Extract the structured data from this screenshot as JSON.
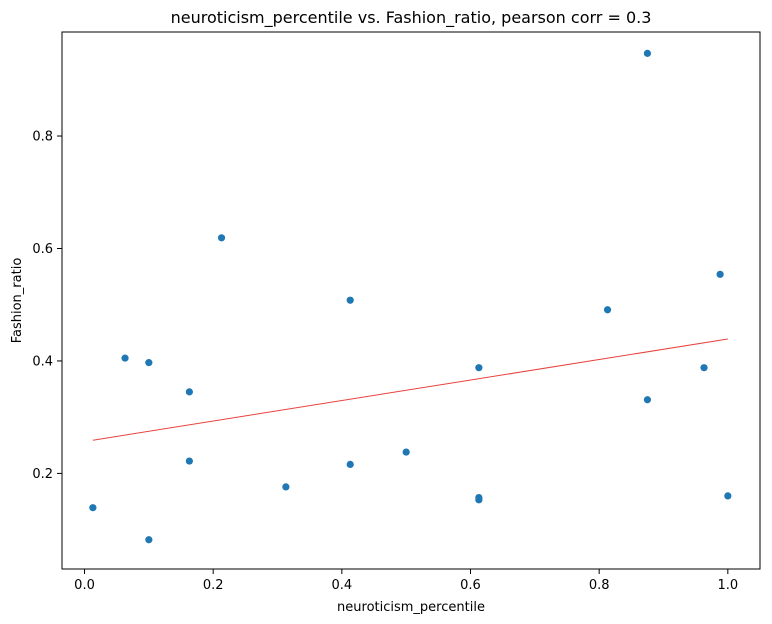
{
  "chart_data": {
    "type": "scatter",
    "title": "neuroticism_percentile vs. Fashion_ratio, pearson corr = 0.3",
    "xlabel": "neuroticism_percentile",
    "ylabel": "Fashion_ratio",
    "xlim": [
      -0.035,
      1.05
    ],
    "ylim": [
      0.03,
      0.985
    ],
    "xticks": [
      0.0,
      0.2,
      0.4,
      0.6,
      0.8,
      1.0
    ],
    "xtick_labels": [
      "0.0",
      "0.2",
      "0.4",
      "0.6",
      "0.8",
      "1.0"
    ],
    "yticks": [
      0.2,
      0.4,
      0.6,
      0.8
    ],
    "ytick_labels": [
      "0.2",
      "0.4",
      "0.6",
      "0.8"
    ],
    "grid": false,
    "point_color": "#1f77b4",
    "trend_color": "#e8423d",
    "points": [
      {
        "x": 0.013,
        "y": 0.139
      },
      {
        "x": 0.063,
        "y": 0.405
      },
      {
        "x": 0.1,
        "y": 0.397
      },
      {
        "x": 0.1,
        "y": 0.082
      },
      {
        "x": 0.163,
        "y": 0.345
      },
      {
        "x": 0.163,
        "y": 0.222
      },
      {
        "x": 0.213,
        "y": 0.619
      },
      {
        "x": 0.313,
        "y": 0.176
      },
      {
        "x": 0.413,
        "y": 0.508
      },
      {
        "x": 0.413,
        "y": 0.216
      },
      {
        "x": 0.5,
        "y": 0.238
      },
      {
        "x": 0.613,
        "y": 0.388
      },
      {
        "x": 0.613,
        "y": 0.157
      },
      {
        "x": 0.613,
        "y": 0.153
      },
      {
        "x": 0.813,
        "y": 0.491
      },
      {
        "x": 0.875,
        "y": 0.947
      },
      {
        "x": 0.875,
        "y": 0.331
      },
      {
        "x": 0.963,
        "y": 0.388
      },
      {
        "x": 0.988,
        "y": 0.554
      },
      {
        "x": 1.0,
        "y": 0.16
      }
    ],
    "trendline": {
      "x": [
        0.013,
        1.0
      ],
      "y": [
        0.259,
        0.439
      ]
    }
  }
}
